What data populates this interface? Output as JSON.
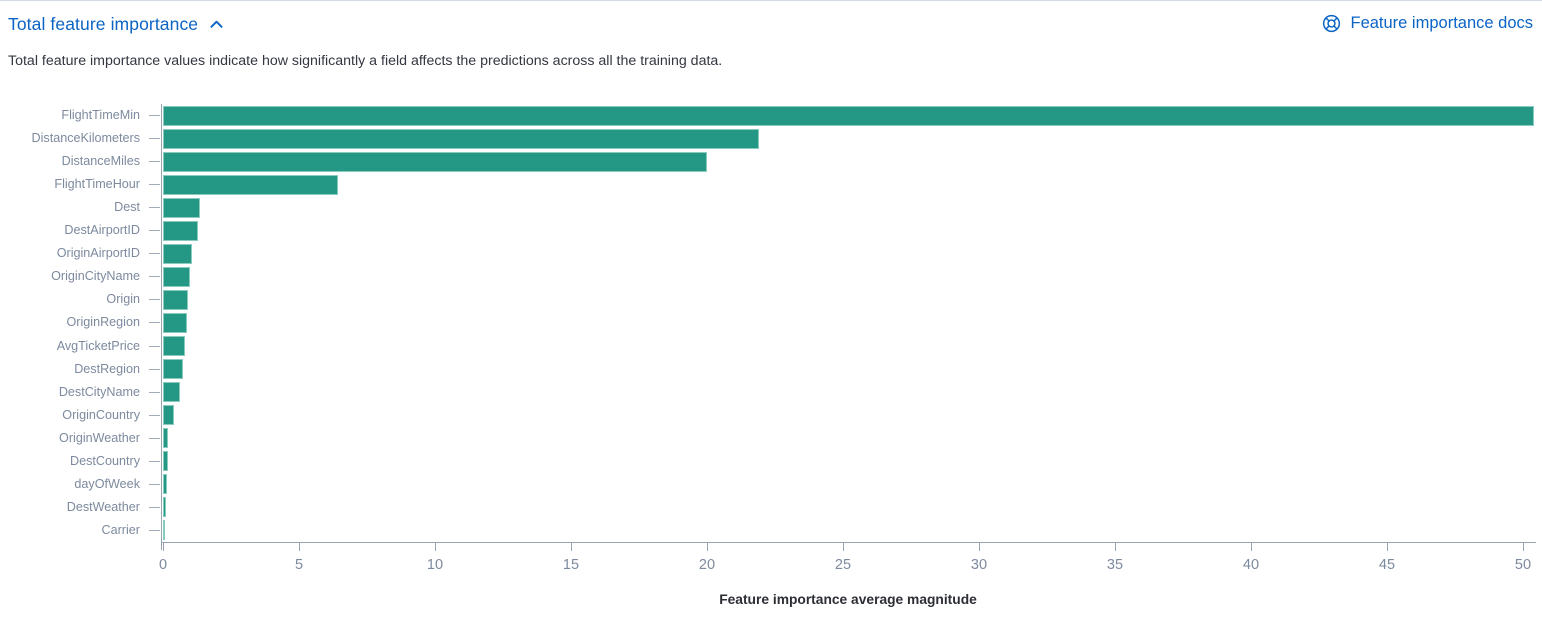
{
  "header": {
    "title": "Total feature importance",
    "docs_link_label": "Feature importance docs",
    "description": "Total feature importance values indicate how significantly a field affects the predictions across all the training data."
  },
  "icons": {
    "collapse": "chevron-up-icon",
    "docs": "help-lifering-icon"
  },
  "colors": {
    "link_blue": "#0b64c4",
    "bar_teal": "#249885",
    "axis_text": "#7d8a9e",
    "axis_line": "#9aa5b4",
    "body_text": "#343741"
  },
  "chart_data": {
    "type": "bar",
    "orientation": "horizontal",
    "xlabel": "Feature importance average magnitude",
    "categories": [
      "FlightTimeMin",
      "DistanceKilometers",
      "DistanceMiles",
      "FlightTimeHour",
      "Dest",
      "DestAirportID",
      "OriginAirportID",
      "OriginCityName",
      "Origin",
      "OriginRegion",
      "AvgTicketPrice",
      "DestRegion",
      "DestCityName",
      "OriginCountry",
      "OriginWeather",
      "DestCountry",
      "dayOfWeek",
      "DestWeather",
      "Carrier"
    ],
    "values": [
      50.4,
      21.9,
      20.0,
      6.45,
      1.35,
      1.3,
      1.08,
      0.98,
      0.93,
      0.87,
      0.81,
      0.74,
      0.61,
      0.4,
      0.19,
      0.17,
      0.16,
      0.12,
      0.04
    ],
    "xlim": [
      0,
      50.4
    ],
    "xticks": [
      0,
      5,
      10,
      15,
      20,
      25,
      30,
      35,
      40,
      45,
      50
    ],
    "grid": false,
    "legend": false
  }
}
